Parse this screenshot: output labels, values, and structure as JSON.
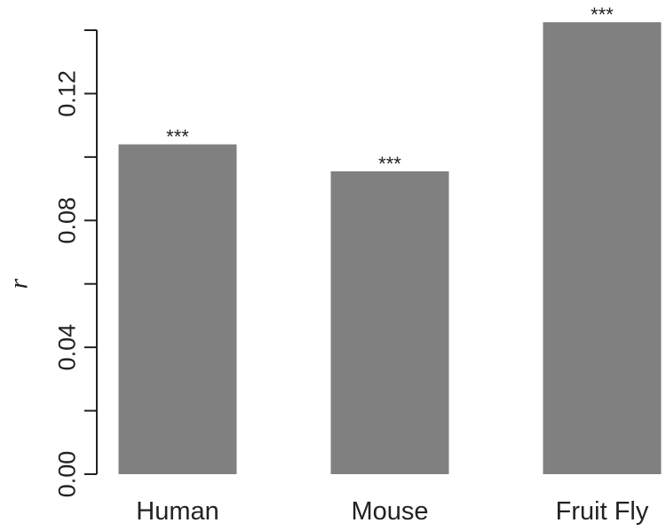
{
  "chart_data": {
    "type": "bar",
    "categories": [
      "Human",
      "Mouse",
      "Fruit Fly"
    ],
    "values": [
      0.104,
      0.0955,
      0.1425
    ],
    "annotations": [
      "***",
      "***",
      "***"
    ],
    "title": "",
    "xlabel": "",
    "ylabel": "r",
    "ylim": [
      0,
      0.14
    ],
    "yticks": [
      0.0,
      0.04,
      0.08,
      0.12
    ],
    "ytick_labels": [
      "0.00",
      "0.04",
      "0.08",
      "0.12"
    ],
    "grid": false,
    "legend": "none",
    "bar_color": "#808080",
    "axis_color": "#222222"
  }
}
